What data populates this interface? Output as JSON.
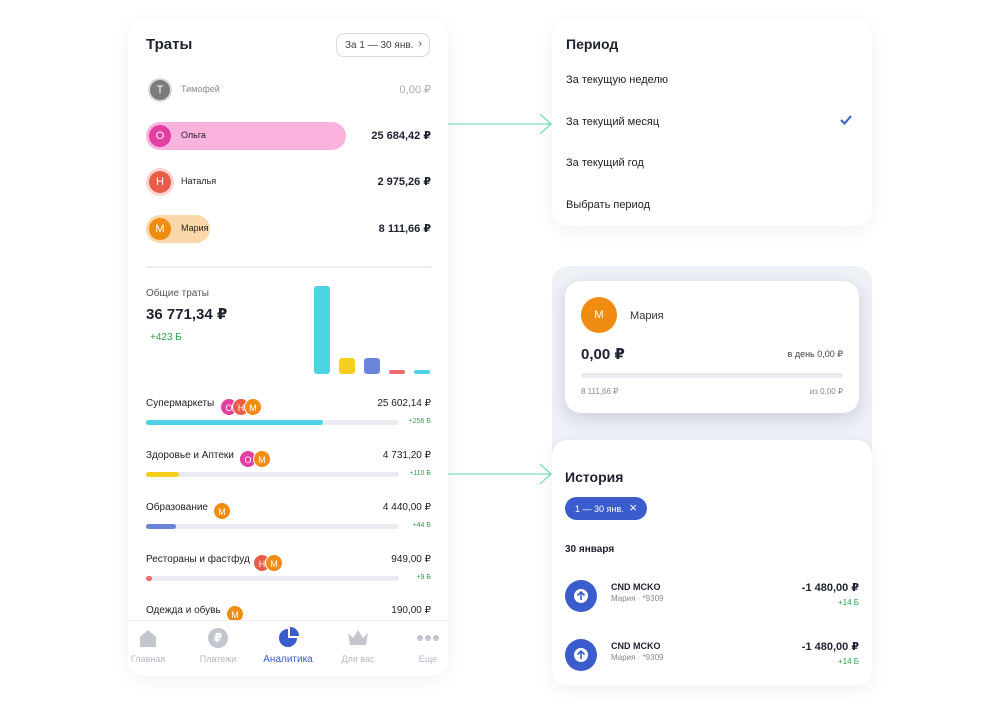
{
  "spending": {
    "title": "Траты",
    "period_button": "За 1 — 30 янв.",
    "members": [
      {
        "initial": "Т",
        "name": "Тимофей",
        "amount": "0,00 ₽",
        "color": "#7c7c7c",
        "pill_color": "#ffffff"
      },
      {
        "initial": "О",
        "name": "Ольга",
        "amount": "25 684,42 ₽",
        "color": "#e23fa0",
        "pill_color": "#f9b3dd"
      },
      {
        "initial": "Н",
        "name": "Наталья",
        "amount": "2 975,26 ₽",
        "color": "#e85d4a",
        "pill_color": "#fbd5cf"
      },
      {
        "initial": "М",
        "name": "Мария",
        "amount": "8 111,66 ₽",
        "color": "#f08c12",
        "pill_color": "#fbd7a9"
      }
    ],
    "total_label": "Общие траты",
    "total_amount": "36 771,34 ₽",
    "total_bonus": "+423 Б",
    "categories": [
      {
        "name": "Супермаркеты",
        "amount": "25 602,14 ₽",
        "bonus": "+256 Б",
        "share": 0.7,
        "color": "#4cd3e6",
        "members": [
          "О",
          "Н",
          "М"
        ]
      },
      {
        "name": "Здоровье и Аптеки",
        "amount": "4 731,20 ₽",
        "bonus": "+110 Б",
        "share": 0.13,
        "color": "#f5cf1d",
        "members": [
          "О",
          "М"
        ]
      },
      {
        "name": "Образование",
        "amount": "4 440,00 ₽",
        "bonus": "+44 Б",
        "share": 0.12,
        "color": "#6b86d8",
        "members": [
          "М"
        ]
      },
      {
        "name": "Рестораны и фастфуд",
        "amount": "949,00 ₽",
        "bonus": "+9 Б",
        "share": 0.026,
        "color": "#f06a74",
        "members": [
          "Н",
          "М"
        ]
      },
      {
        "name": "Одежда и обувь",
        "amount": "190,00 ₽",
        "bonus": "",
        "share": 0.005,
        "color": "#4cd3e6",
        "members": [
          "М"
        ]
      }
    ],
    "tabs": [
      {
        "label": "Главная",
        "icon": "home-icon"
      },
      {
        "label": "Платежи",
        "icon": "ruble-icon"
      },
      {
        "label": "Аналитика",
        "icon": "pie-chart-icon"
      },
      {
        "label": "Для вас",
        "icon": "crown-icon"
      },
      {
        "label": "Еще",
        "icon": "more-icon"
      }
    ]
  },
  "period_menu": {
    "title": "Период",
    "options": [
      "За текущую неделю",
      "За текущий месяц",
      "За текущий год",
      "Выбрать период"
    ],
    "selected": "За текущий месяц"
  },
  "member_card": {
    "initial": "М",
    "name": "Мария",
    "amount": "0,00 ₽",
    "per_day": "в день 0,00 ₽",
    "spent": "8 111,66 ₽",
    "limit": "из 0,00 ₽"
  },
  "history": {
    "title": "История",
    "filter_chip": "1 — 30 янв.",
    "date_header": "30 января",
    "transactions": [
      {
        "merchant": "CND MCKO",
        "subtitle": "Мария · *9309",
        "amount": "-1 480,00 ₽",
        "bonus": "+14 Б"
      },
      {
        "merchant": "CND MCKO",
        "subtitle": "Мария · *9309",
        "amount": "-1 480,00 ₽",
        "bonus": "+14 Б"
      }
    ]
  },
  "colors": {
    "accent": "#3a5ccc",
    "bonus_green": "#2aa34a",
    "arrow_teal": "#5fd6b8"
  }
}
